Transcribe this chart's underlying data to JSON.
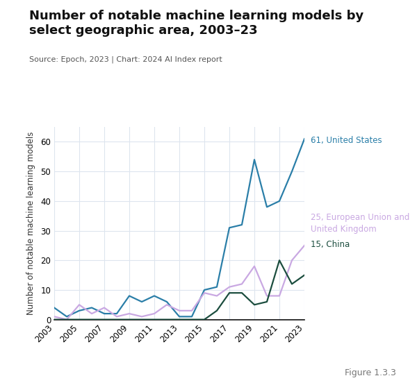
{
  "title": "Number of notable machine learning models by\nselect geographic area, 2003–23",
  "source": "Source: Epoch, 2023 | Chart: 2024 AI Index report",
  "figure_label": "Figure 1.3.3",
  "ylabel": "Number of notable machine learning models",
  "background_color": "#ffffff",
  "grid_color": "#dde5ee",
  "years": [
    2003,
    2004,
    2005,
    2006,
    2007,
    2008,
    2009,
    2010,
    2011,
    2012,
    2013,
    2014,
    2015,
    2016,
    2017,
    2018,
    2019,
    2020,
    2021,
    2022,
    2023
  ],
  "us": [
    4,
    1,
    3,
    4,
    2,
    2,
    8,
    6,
    8,
    6,
    1,
    1,
    10,
    11,
    31,
    32,
    54,
    38,
    40,
    50,
    61
  ],
  "eu_uk": [
    1,
    0,
    5,
    2,
    4,
    1,
    2,
    1,
    2,
    5,
    3,
    3,
    9,
    8,
    11,
    12,
    18,
    8,
    8,
    20,
    25
  ],
  "china": [
    0,
    0,
    0,
    0,
    0,
    0,
    0,
    0,
    0,
    0,
    0,
    0,
    0,
    3,
    9,
    9,
    5,
    6,
    20,
    12,
    15
  ],
  "us_color": "#2a7ea8",
  "eu_uk_color": "#c9a8e2",
  "china_color": "#1b4d3e",
  "us_label": "61, United States",
  "eu_uk_label_line1": "25, European Union and",
  "eu_uk_label_line2": "United Kingdom",
  "china_label": "15, China",
  "ylim": [
    0,
    65
  ],
  "yticks": [
    0,
    10,
    20,
    30,
    40,
    50,
    60
  ],
  "xticks": [
    2003,
    2005,
    2007,
    2009,
    2011,
    2013,
    2015,
    2017,
    2019,
    2021,
    2023
  ],
  "linewidth": 1.6,
  "title_fontsize": 13,
  "source_fontsize": 8,
  "label_fontsize": 8.5,
  "tick_fontsize": 8.5,
  "ylabel_fontsize": 8.5
}
